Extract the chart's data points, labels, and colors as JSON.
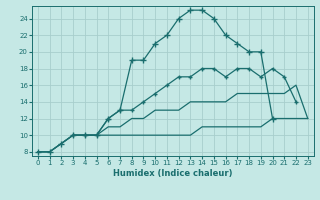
{
  "xlabel": "Humidex (Indice chaleur)",
  "bg_color": "#c5e8e5",
  "grid_color": "#a8cecc",
  "line_color": "#1a6e6e",
  "xlim": [
    -0.5,
    23.5
  ],
  "ylim": [
    7.5,
    25.5
  ],
  "xticks": [
    0,
    1,
    2,
    3,
    4,
    5,
    6,
    7,
    8,
    9,
    10,
    11,
    12,
    13,
    14,
    15,
    16,
    17,
    18,
    19,
    20,
    21,
    22,
    23
  ],
  "yticks": [
    8,
    10,
    12,
    14,
    16,
    18,
    20,
    22,
    24
  ],
  "lines": [
    {
      "x": [
        0,
        1,
        2,
        3,
        4,
        5,
        6,
        7,
        8,
        9,
        10,
        11,
        12,
        13,
        14,
        15,
        16,
        17,
        18,
        19,
        20
      ],
      "y": [
        8,
        8,
        9,
        10,
        10,
        10,
        12,
        13,
        19,
        19,
        21,
        22,
        24,
        25,
        25,
        24,
        22,
        21,
        20,
        20,
        12
      ],
      "marker": "+"
    },
    {
      "x": [
        3,
        4,
        5,
        6,
        7,
        8,
        9,
        10,
        11,
        12,
        13,
        14,
        15,
        16,
        17,
        18,
        19,
        20,
        21,
        22
      ],
      "y": [
        10,
        10,
        10,
        12,
        13,
        13,
        14,
        15,
        16,
        17,
        17,
        18,
        18,
        17,
        18,
        18,
        17,
        18,
        17,
        14
      ],
      "marker": "+"
    },
    {
      "x": [
        0,
        1,
        2,
        3,
        4,
        5,
        6,
        7,
        8,
        9,
        10,
        11,
        12,
        13,
        14,
        15,
        16,
        17,
        18,
        19,
        20,
        21,
        22,
        23
      ],
      "y": [
        8,
        8,
        9,
        10,
        10,
        10,
        10,
        10,
        10,
        10,
        10,
        10,
        10,
        10,
        11,
        11,
        11,
        11,
        11,
        11,
        12,
        12,
        12,
        12
      ],
      "marker": null
    },
    {
      "x": [
        0,
        1,
        2,
        3,
        4,
        5,
        6,
        7,
        8,
        9,
        10,
        11,
        12,
        13,
        14,
        15,
        16,
        17,
        18,
        19,
        20,
        21,
        22,
        23
      ],
      "y": [
        8,
        8,
        9,
        10,
        10,
        10,
        11,
        11,
        12,
        12,
        13,
        13,
        13,
        14,
        14,
        14,
        14,
        15,
        15,
        15,
        15,
        15,
        16,
        12
      ],
      "marker": null
    }
  ]
}
